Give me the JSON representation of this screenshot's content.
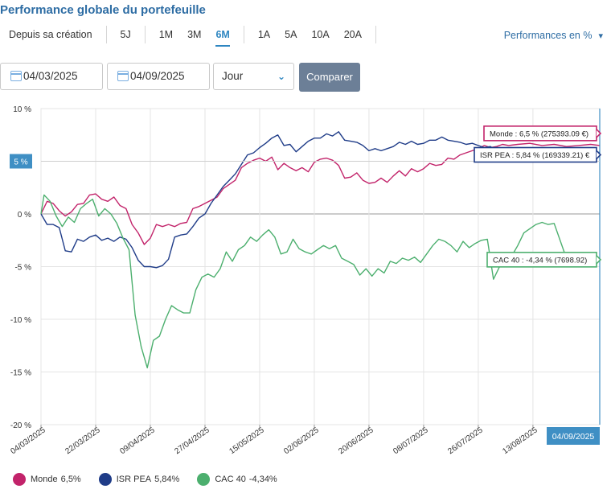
{
  "header": {
    "title": "Performance globale du portefeuille",
    "periods": [
      {
        "label": "Depuis sa création",
        "active": false
      },
      {
        "label": "5J",
        "active": false
      },
      {
        "label": "1M",
        "active": false
      },
      {
        "label": "3M",
        "active": false
      },
      {
        "label": "6M",
        "active": true
      },
      {
        "label": "1A",
        "active": false
      },
      {
        "label": "5A",
        "active": false
      },
      {
        "label": "10A",
        "active": false
      },
      {
        "label": "20A",
        "active": false
      }
    ],
    "perf_mode": "Performances en %",
    "perf_caret": "▾"
  },
  "controls": {
    "start_date": "04/03/2025",
    "end_date": "04/09/2025",
    "granularity": "Jour",
    "granularity_chevron": "⌄",
    "compare_label": "Comparer"
  },
  "colors": {
    "monde": "#c2236a",
    "isr_pea": "#1f3c88",
    "cac40": "#4caf6e",
    "accent": "#3f8fc4",
    "grid": "#e4e4e4"
  },
  "chart_data": {
    "type": "line",
    "x_ticks": [
      "04/03/2025",
      "22/03/2025",
      "09/04/2025",
      "27/04/2025",
      "15/05/2025",
      "02/06/2025",
      "20/06/2025",
      "08/07/2025",
      "26/07/2025",
      "13/08/2025"
    ],
    "y_ticks": [
      10,
      5,
      0,
      -5,
      -10,
      -15,
      -20
    ],
    "y_tick_labels": [
      "10 %",
      "5 %",
      "0 %",
      "-5 %",
      "-10 %",
      "-15 %",
      "-20 %"
    ],
    "ylim": [
      -20,
      10
    ],
    "x_start": "2025-03-04",
    "x_end": "2025-09-04",
    "crosshair_y_label": "5 %",
    "crosshair_x_label": "04/09/2025",
    "tooltips": [
      {
        "series": "monde",
        "text": "Monde : 6,5 % (275393.09 €)"
      },
      {
        "series": "isr_pea",
        "text": "ISR PEA : 5,84 % (169339.21) €"
      },
      {
        "series": "cac40",
        "text": "CAC 40 : -4,34 % (7698.92)"
      }
    ],
    "series": [
      {
        "key": "monde",
        "name": "Monde",
        "legend_value": "6,5%",
        "points": [
          [
            "2025-03-04",
            0
          ],
          [
            "2025-03-06",
            1.2
          ],
          [
            "2025-03-08",
            1.0
          ],
          [
            "2025-03-10",
            0.3
          ],
          [
            "2025-03-12",
            -0.2
          ],
          [
            "2025-03-14",
            0.2
          ],
          [
            "2025-03-16",
            0.9
          ],
          [
            "2025-03-18",
            1.0
          ],
          [
            "2025-03-20",
            1.8
          ],
          [
            "2025-03-22",
            1.9
          ],
          [
            "2025-03-24",
            1.4
          ],
          [
            "2025-03-26",
            1.2
          ],
          [
            "2025-03-28",
            1.6
          ],
          [
            "2025-03-30",
            0.8
          ],
          [
            "2025-04-01",
            0.5
          ],
          [
            "2025-04-03",
            -1.0
          ],
          [
            "2025-04-05",
            -1.8
          ],
          [
            "2025-04-07",
            -2.9
          ],
          [
            "2025-04-09",
            -2.3
          ],
          [
            "2025-04-11",
            -1.0
          ],
          [
            "2025-04-13",
            -1.2
          ],
          [
            "2025-04-15",
            -1.0
          ],
          [
            "2025-04-17",
            -1.2
          ],
          [
            "2025-04-19",
            -0.9
          ],
          [
            "2025-04-21",
            -0.8
          ],
          [
            "2025-04-23",
            0.5
          ],
          [
            "2025-04-25",
            0.7
          ],
          [
            "2025-04-27",
            1.0
          ],
          [
            "2025-04-29",
            1.3
          ],
          [
            "2025-05-01",
            1.6
          ],
          [
            "2025-05-03",
            2.4
          ],
          [
            "2025-05-05",
            2.8
          ],
          [
            "2025-05-07",
            3.2
          ],
          [
            "2025-05-09",
            4.4
          ],
          [
            "2025-05-11",
            4.8
          ],
          [
            "2025-05-13",
            5.1
          ],
          [
            "2025-05-15",
            5.3
          ],
          [
            "2025-05-17",
            5.0
          ],
          [
            "2025-05-19",
            5.4
          ],
          [
            "2025-05-21",
            4.2
          ],
          [
            "2025-05-23",
            4.8
          ],
          [
            "2025-05-25",
            4.4
          ],
          [
            "2025-05-27",
            4.1
          ],
          [
            "2025-05-29",
            4.4
          ],
          [
            "2025-05-31",
            4.0
          ],
          [
            "2025-06-02",
            4.9
          ],
          [
            "2025-06-04",
            5.2
          ],
          [
            "2025-06-06",
            5.3
          ],
          [
            "2025-06-08",
            5.1
          ],
          [
            "2025-06-10",
            4.6
          ],
          [
            "2025-06-12",
            3.4
          ],
          [
            "2025-06-14",
            3.5
          ],
          [
            "2025-06-16",
            3.9
          ],
          [
            "2025-06-18",
            3.2
          ],
          [
            "2025-06-20",
            2.9
          ],
          [
            "2025-06-22",
            3.0
          ],
          [
            "2025-06-24",
            3.4
          ],
          [
            "2025-06-26",
            3.0
          ],
          [
            "2025-06-28",
            3.6
          ],
          [
            "2025-06-30",
            4.1
          ],
          [
            "2025-07-02",
            3.6
          ],
          [
            "2025-07-04",
            4.3
          ],
          [
            "2025-07-06",
            4.0
          ],
          [
            "2025-07-08",
            4.3
          ],
          [
            "2025-07-10",
            4.8
          ],
          [
            "2025-07-12",
            4.6
          ],
          [
            "2025-07-14",
            4.7
          ],
          [
            "2025-07-16",
            5.3
          ],
          [
            "2025-07-18",
            5.2
          ],
          [
            "2025-07-20",
            5.6
          ],
          [
            "2025-07-22",
            5.8
          ],
          [
            "2025-07-24",
            6.0
          ],
          [
            "2025-07-26",
            6.2
          ],
          [
            "2025-07-28",
            6.5
          ],
          [
            "2025-07-30",
            6.3
          ],
          [
            "2025-08-01",
            6.4
          ],
          [
            "2025-08-03",
            6.6
          ],
          [
            "2025-08-05",
            6.5
          ],
          [
            "2025-08-08",
            6.6
          ],
          [
            "2025-08-12",
            6.7
          ],
          [
            "2025-08-16",
            6.5
          ],
          [
            "2025-08-20",
            6.6
          ],
          [
            "2025-08-24",
            6.4
          ],
          [
            "2025-08-28",
            6.5
          ],
          [
            "2025-09-01",
            6.6
          ],
          [
            "2025-09-04",
            6.5
          ]
        ]
      },
      {
        "key": "isr_pea",
        "name": "ISR PEA",
        "legend_value": "5,84%",
        "points": [
          [
            "2025-03-04",
            0
          ],
          [
            "2025-03-06",
            -1.0
          ],
          [
            "2025-03-08",
            -1.0
          ],
          [
            "2025-03-10",
            -1.3
          ],
          [
            "2025-03-12",
            -3.5
          ],
          [
            "2025-03-14",
            -3.6
          ],
          [
            "2025-03-16",
            -2.4
          ],
          [
            "2025-03-18",
            -2.6
          ],
          [
            "2025-03-20",
            -2.2
          ],
          [
            "2025-03-22",
            -2.0
          ],
          [
            "2025-03-24",
            -2.5
          ],
          [
            "2025-03-26",
            -2.3
          ],
          [
            "2025-03-28",
            -2.6
          ],
          [
            "2025-03-30",
            -2.2
          ],
          [
            "2025-04-01",
            -2.4
          ],
          [
            "2025-04-03",
            -3.2
          ],
          [
            "2025-04-05",
            -4.4
          ],
          [
            "2025-04-07",
            -5.0
          ],
          [
            "2025-04-09",
            -5.0
          ],
          [
            "2025-04-11",
            -5.1
          ],
          [
            "2025-04-13",
            -4.9
          ],
          [
            "2025-04-15",
            -4.3
          ],
          [
            "2025-04-17",
            -2.2
          ],
          [
            "2025-04-19",
            -2.0
          ],
          [
            "2025-04-21",
            -1.9
          ],
          [
            "2025-04-23",
            -1.2
          ],
          [
            "2025-04-25",
            -0.4
          ],
          [
            "2025-04-27",
            0.0
          ],
          [
            "2025-04-29",
            1.0
          ],
          [
            "2025-05-01",
            1.8
          ],
          [
            "2025-05-03",
            2.6
          ],
          [
            "2025-05-05",
            3.2
          ],
          [
            "2025-05-07",
            3.8
          ],
          [
            "2025-05-09",
            4.7
          ],
          [
            "2025-05-11",
            5.6
          ],
          [
            "2025-05-13",
            5.8
          ],
          [
            "2025-05-15",
            6.3
          ],
          [
            "2025-05-17",
            6.7
          ],
          [
            "2025-05-19",
            7.2
          ],
          [
            "2025-05-21",
            7.5
          ],
          [
            "2025-05-23",
            6.5
          ],
          [
            "2025-05-25",
            6.6
          ],
          [
            "2025-05-27",
            5.9
          ],
          [
            "2025-05-29",
            6.4
          ],
          [
            "2025-05-31",
            6.9
          ],
          [
            "2025-06-02",
            7.2
          ],
          [
            "2025-06-04",
            7.2
          ],
          [
            "2025-06-06",
            7.6
          ],
          [
            "2025-06-08",
            7.4
          ],
          [
            "2025-06-10",
            7.8
          ],
          [
            "2025-06-12",
            7.0
          ],
          [
            "2025-06-14",
            6.9
          ],
          [
            "2025-06-16",
            6.8
          ],
          [
            "2025-06-18",
            6.5
          ],
          [
            "2025-06-20",
            6.0
          ],
          [
            "2025-06-22",
            6.2
          ],
          [
            "2025-06-24",
            6.0
          ],
          [
            "2025-06-26",
            6.2
          ],
          [
            "2025-06-28",
            6.4
          ],
          [
            "2025-06-30",
            6.8
          ],
          [
            "2025-07-02",
            6.6
          ],
          [
            "2025-07-04",
            6.9
          ],
          [
            "2025-07-06",
            6.6
          ],
          [
            "2025-07-08",
            6.7
          ],
          [
            "2025-07-10",
            7.0
          ],
          [
            "2025-07-12",
            7.0
          ],
          [
            "2025-07-14",
            7.3
          ],
          [
            "2025-07-16",
            7.0
          ],
          [
            "2025-07-18",
            6.9
          ],
          [
            "2025-07-20",
            6.8
          ],
          [
            "2025-07-22",
            6.6
          ],
          [
            "2025-07-24",
            6.7
          ],
          [
            "2025-07-26",
            6.5
          ],
          [
            "2025-07-28",
            6.3
          ],
          [
            "2025-07-30",
            6.4
          ],
          [
            "2025-08-01",
            6.0
          ],
          [
            "2025-08-05",
            5.9
          ],
          [
            "2025-08-10",
            6.1
          ],
          [
            "2025-08-15",
            5.8
          ],
          [
            "2025-08-20",
            6.0
          ],
          [
            "2025-08-25",
            5.8
          ],
          [
            "2025-08-30",
            5.9
          ],
          [
            "2025-09-04",
            5.84
          ]
        ]
      },
      {
        "key": "cac40",
        "name": "CAC 40",
        "legend_value": "-4,34%",
        "points": [
          [
            "2025-03-04",
            0
          ],
          [
            "2025-03-05",
            1.8
          ],
          [
            "2025-03-07",
            1.2
          ],
          [
            "2025-03-09",
            -0.2
          ],
          [
            "2025-03-11",
            -1.2
          ],
          [
            "2025-03-13",
            -0.3
          ],
          [
            "2025-03-15",
            -0.8
          ],
          [
            "2025-03-17",
            0.5
          ],
          [
            "2025-03-19",
            1.0
          ],
          [
            "2025-03-21",
            1.4
          ],
          [
            "2025-03-23",
            -0.2
          ],
          [
            "2025-03-25",
            0.5
          ],
          [
            "2025-03-27",
            0.0
          ],
          [
            "2025-03-29",
            -0.9
          ],
          [
            "2025-03-31",
            -2.3
          ],
          [
            "2025-04-02",
            -3.4
          ],
          [
            "2025-04-04",
            -9.6
          ],
          [
            "2025-04-06",
            -12.6
          ],
          [
            "2025-04-08",
            -14.6
          ],
          [
            "2025-04-10",
            -12.0
          ],
          [
            "2025-04-12",
            -11.6
          ],
          [
            "2025-04-14",
            -10.0
          ],
          [
            "2025-04-16",
            -8.7
          ],
          [
            "2025-04-18",
            -9.1
          ],
          [
            "2025-04-20",
            -9.4
          ],
          [
            "2025-04-22",
            -9.4
          ],
          [
            "2025-04-24",
            -7.2
          ],
          [
            "2025-04-26",
            -6.0
          ],
          [
            "2025-04-28",
            -5.7
          ],
          [
            "2025-04-30",
            -6.0
          ],
          [
            "2025-05-02",
            -5.2
          ],
          [
            "2025-05-04",
            -3.6
          ],
          [
            "2025-05-06",
            -4.5
          ],
          [
            "2025-05-08",
            -3.4
          ],
          [
            "2025-05-10",
            -3.0
          ],
          [
            "2025-05-12",
            -2.2
          ],
          [
            "2025-05-14",
            -2.6
          ],
          [
            "2025-05-16",
            -2.0
          ],
          [
            "2025-05-18",
            -1.5
          ],
          [
            "2025-05-20",
            -2.2
          ],
          [
            "2025-05-22",
            -3.8
          ],
          [
            "2025-05-24",
            -3.6
          ],
          [
            "2025-05-26",
            -2.4
          ],
          [
            "2025-05-28",
            -3.3
          ],
          [
            "2025-05-30",
            -3.6
          ],
          [
            "2025-06-01",
            -3.8
          ],
          [
            "2025-06-03",
            -3.4
          ],
          [
            "2025-06-05",
            -3.0
          ],
          [
            "2025-06-07",
            -3.3
          ],
          [
            "2025-06-09",
            -3.0
          ],
          [
            "2025-06-11",
            -4.2
          ],
          [
            "2025-06-13",
            -4.5
          ],
          [
            "2025-06-15",
            -4.8
          ],
          [
            "2025-06-17",
            -5.8
          ],
          [
            "2025-06-19",
            -5.2
          ],
          [
            "2025-06-21",
            -5.9
          ],
          [
            "2025-06-23",
            -5.2
          ],
          [
            "2025-06-25",
            -5.6
          ],
          [
            "2025-06-27",
            -4.5
          ],
          [
            "2025-06-29",
            -4.7
          ],
          [
            "2025-07-01",
            -4.2
          ],
          [
            "2025-07-03",
            -4.4
          ],
          [
            "2025-07-05",
            -4.1
          ],
          [
            "2025-07-07",
            -4.6
          ],
          [
            "2025-07-09",
            -3.8
          ],
          [
            "2025-07-11",
            -3.0
          ],
          [
            "2025-07-13",
            -2.4
          ],
          [
            "2025-07-15",
            -2.6
          ],
          [
            "2025-07-17",
            -3.0
          ],
          [
            "2025-07-19",
            -3.6
          ],
          [
            "2025-07-21",
            -2.6
          ],
          [
            "2025-07-23",
            -3.2
          ],
          [
            "2025-07-25",
            -2.8
          ],
          [
            "2025-07-27",
            -2.5
          ],
          [
            "2025-07-29",
            -2.4
          ],
          [
            "2025-07-31",
            -6.2
          ],
          [
            "2025-08-02",
            -5.0
          ],
          [
            "2025-08-04",
            -4.8
          ],
          [
            "2025-08-06",
            -4.0
          ],
          [
            "2025-08-08",
            -3.0
          ],
          [
            "2025-08-10",
            -1.8
          ],
          [
            "2025-08-12",
            -1.4
          ],
          [
            "2025-08-14",
            -1.0
          ],
          [
            "2025-08-16",
            -0.8
          ],
          [
            "2025-08-18",
            -1.0
          ],
          [
            "2025-08-20",
            -0.9
          ],
          [
            "2025-08-24",
            -4.2
          ],
          [
            "2025-08-28",
            -4.4
          ],
          [
            "2025-09-01",
            -4.3
          ],
          [
            "2025-09-04",
            -4.34
          ]
        ]
      }
    ]
  }
}
